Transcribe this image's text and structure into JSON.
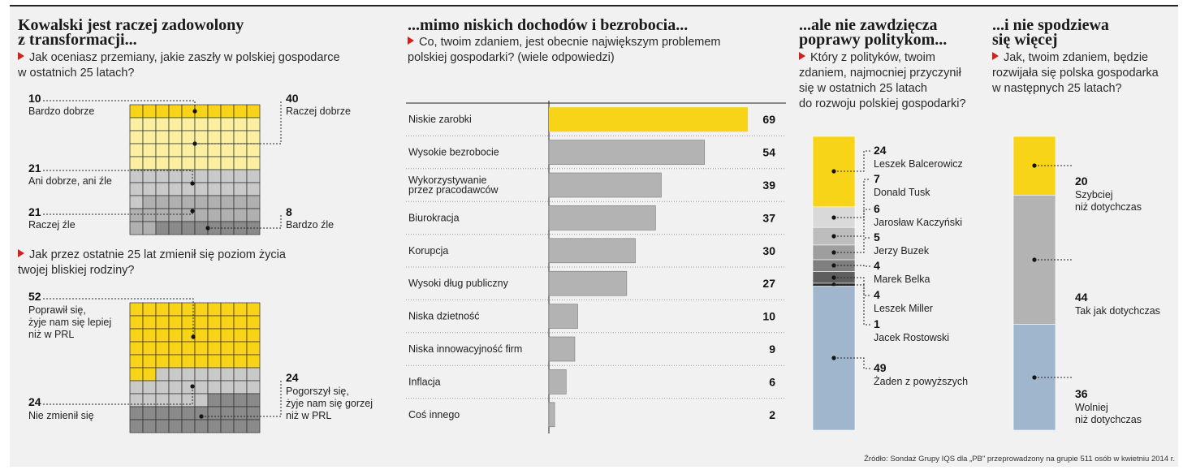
{
  "colors": {
    "yellow": "#f7d417",
    "lightyellow": "#fbf0a0",
    "lightgray": "#c9c9c9",
    "gray": "#b0b0b0",
    "darkgray": "#8a8a8a",
    "blue": "#9fb6cc"
  },
  "panel1": {
    "title_1": "Kowalski jest raczej zadowolony",
    "title_2": "z transformacji...",
    "q1_line1": "Jak oceniasz przemiany, jakie zaszły w polskiej gospodarce",
    "q1_line2": "w ostatnich 25 latach?",
    "q2_line1": "Jak przez ostatnie 25 lat zmienił się poziom życia",
    "q2_line2": "twojej bliskiej rodziny?"
  },
  "panel2": {
    "title": "...mimo niskich dochodów i bezrobocia...",
    "q_line1": "Co, twoim zdaniem, jest obecnie największym problemem",
    "q_line2": "polskiej gospodarki? (wiele odpowiedzi)"
  },
  "panel3": {
    "title_1": "...ale nie zawdzięcza",
    "title_2": "poprawy politykom...",
    "q_line1": "Który z polityków, twoim",
    "q_line2": "zdaniem, najmocniej przyczynił",
    "q_line3": "się w ostatnich 25 latach",
    "q_line4": "do rozwoju polskiej gospodarki?"
  },
  "panel4": {
    "title_1": "...i nie spodziewa",
    "title_2": "się więcej",
    "q_line1": "Jak, twoim zdaniem, będzie",
    "q_line2": "rozwijała się polska gospodarka",
    "q_line3": "w następnych 25 latach?"
  },
  "source": "Źródło: Sondaż Grupy IQS dla „PB\" przeprowadzony na grupie 511 osób w kwietniu 2014 r.",
  "chart_data": [
    {
      "type": "waffle",
      "segments": [
        {
          "name": "Bardzo dobrze",
          "value": 10,
          "color": "#f7d417"
        },
        {
          "name": "Raczej dobrze",
          "value": 40,
          "color": "#fbf0a0"
        },
        {
          "name": "Ani dobrze, ani źle",
          "value": 21,
          "color": "#c9c9c9"
        },
        {
          "name": "Raczej źle",
          "value": 21,
          "color": "#b0b0b0"
        },
        {
          "name": "Bardzo źle",
          "value": 8,
          "color": "#8a8a8a"
        }
      ]
    },
    {
      "type": "waffle",
      "segments": [
        {
          "name": "Poprawił się, żyje nam się lepiej niż w PRL",
          "lines": [
            "Poprawił się,",
            "żyje nam się lepiej",
            "niż w PRL"
          ],
          "value": 52,
          "color": "#f7d417"
        },
        {
          "name": "Nie zmienił się",
          "lines": [
            "Nie zmienił się"
          ],
          "value": 24,
          "color": "#c9c9c9"
        },
        {
          "name": "Pogorszył się, żyje nam się gorzej niż w PRL",
          "lines": [
            "Pogorszył się,",
            "żyje nam się gorzej",
            "niż w PRL"
          ],
          "value": 24,
          "color": "#8a8a8a"
        }
      ]
    },
    {
      "type": "bar",
      "categories": [
        "Niskie zarobki",
        "Wysokie bezrobocie",
        "Wykorzystywanie przez pracodawców",
        "Biurokracja",
        "Korupcja",
        "Wysoki dług publiczny",
        "Niska dzietność",
        "Niska innowacyjność firm",
        "Inflacja",
        "Coś innego"
      ],
      "category_lines": [
        [
          "Niskie zarobki"
        ],
        [
          "Wysokie bezrobocie"
        ],
        [
          "Wykorzystywanie",
          "przez pracodawców"
        ],
        [
          "Biurokracja"
        ],
        [
          "Korupcja"
        ],
        [
          "Wysoki dług publiczny"
        ],
        [
          "Niska dzietność"
        ],
        [
          "Niska innowacyjność firm"
        ],
        [
          "Inflacja"
        ],
        [
          "Coś innego"
        ]
      ],
      "values": [
        69,
        54,
        39,
        37,
        30,
        27,
        10,
        9,
        6,
        2
      ],
      "highlight_color": "#f7d417",
      "bar_color": "#b3b3b3"
    },
    {
      "type": "stacked_bar",
      "segments": [
        {
          "name": "Leszek Balcerowicz",
          "value": 24,
          "color": "#f7d417"
        },
        {
          "name": "Donald Tusk",
          "value": 7,
          "color": "#d9d9d9"
        },
        {
          "name": "Jarosław Kaczyński",
          "value": 6,
          "color": "#bdbdbd"
        },
        {
          "name": "Jerzy Buzek",
          "value": 5,
          "color": "#9e9e9e"
        },
        {
          "name": "Marek Belka",
          "value": 4,
          "color": "#7f7f7f"
        },
        {
          "name": "Leszek Miller",
          "value": 4,
          "color": "#5e5e5e"
        },
        {
          "name": "Jacek Rostowski",
          "value": 1,
          "color": "#2b2b2b"
        },
        {
          "name": "Żaden z powyższych",
          "value": 49,
          "color": "#9fb6cc"
        }
      ]
    },
    {
      "type": "stacked_bar",
      "segments": [
        {
          "name": "Szybciej niż dotychczas",
          "lines": [
            "Szybciej",
            "niż dotychczas"
          ],
          "value": 20,
          "color": "#f7d417"
        },
        {
          "name": "Tak jak dotychczas",
          "lines": [
            "Tak jak dotychczas"
          ],
          "value": 44,
          "color": "#b3b3b3"
        },
        {
          "name": "Wolniej niż dotychczas",
          "lines": [
            "Wolniej",
            "niż dotychczas"
          ],
          "value": 36,
          "color": "#9fb6cc"
        }
      ]
    }
  ]
}
